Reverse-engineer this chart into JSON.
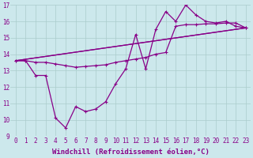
{
  "xlabel": "Windchill (Refroidissement éolien,°C)",
  "bg_color": "#cce8ec",
  "grid_color": "#aacccc",
  "line_color": "#880088",
  "xlim": [
    -0.5,
    23.5
  ],
  "ylim": [
    9,
    17
  ],
  "xticks": [
    0,
    1,
    2,
    3,
    4,
    5,
    6,
    7,
    8,
    9,
    10,
    11,
    12,
    13,
    14,
    15,
    16,
    17,
    18,
    19,
    20,
    21,
    22,
    23
  ],
  "yticks": [
    9,
    10,
    11,
    12,
    13,
    14,
    15,
    16,
    17
  ],
  "series_zigzag": {
    "x": [
      0,
      1,
      2,
      3,
      4,
      5,
      6,
      7,
      8,
      9,
      10,
      11,
      12,
      13,
      14,
      15,
      16,
      17,
      18,
      19,
      20,
      21,
      22,
      23
    ],
    "y": [
      13.6,
      13.6,
      12.7,
      12.7,
      10.1,
      9.5,
      10.8,
      10.5,
      10.65,
      11.1,
      12.2,
      13.1,
      15.2,
      13.1,
      15.5,
      16.6,
      16.0,
      17.0,
      16.4,
      16.0,
      15.9,
      16.0,
      15.7,
      15.6
    ]
  },
  "series_flat": {
    "x": [
      0,
      1,
      2,
      3,
      4,
      5,
      6,
      7,
      8,
      9,
      10,
      11,
      12,
      13,
      14,
      15,
      16,
      17,
      18,
      19,
      20,
      21,
      22,
      23
    ],
    "y": [
      13.6,
      13.6,
      13.5,
      13.5,
      13.4,
      13.3,
      13.2,
      13.25,
      13.3,
      13.35,
      13.5,
      13.6,
      13.7,
      13.8,
      14.0,
      14.1,
      15.7,
      15.8,
      15.8,
      15.85,
      15.85,
      15.9,
      15.9,
      15.6
    ]
  },
  "trend1": {
    "x": [
      0,
      23
    ],
    "y": [
      13.6,
      15.6
    ]
  },
  "trend2": {
    "x": [
      0,
      23
    ],
    "y": [
      13.6,
      15.6
    ]
  },
  "marker": "+",
  "markersize": 3,
  "linewidth": 0.9,
  "xlabel_fontsize": 6.5,
  "tick_fontsize": 5.5
}
